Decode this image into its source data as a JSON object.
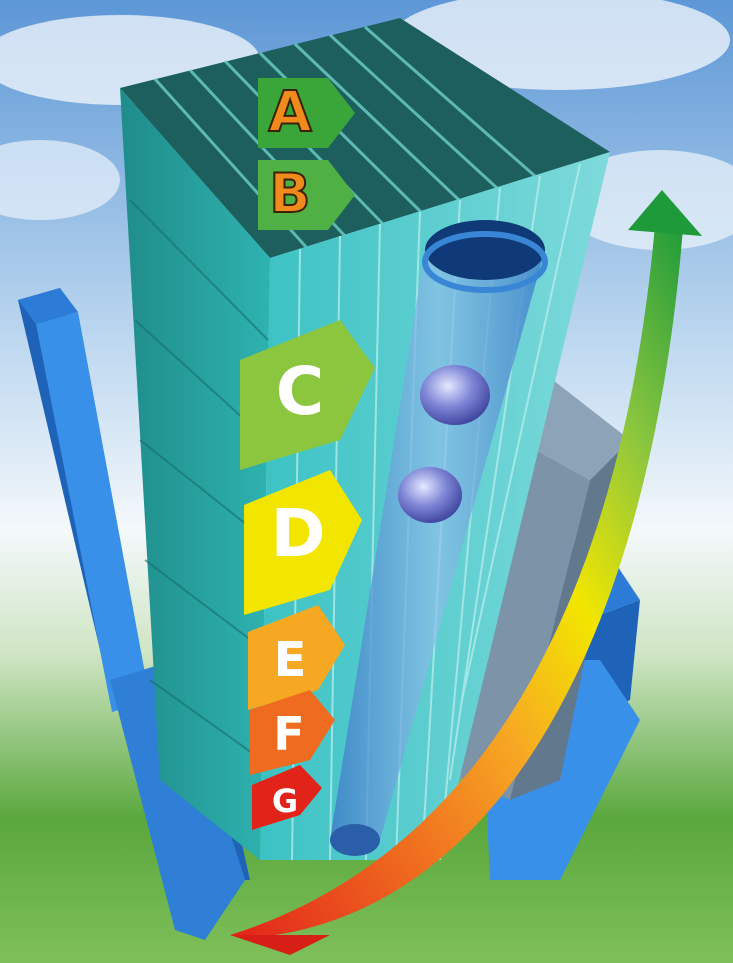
{
  "energy_labels": [
    {
      "letter": "A",
      "color": "#3aa63a",
      "text_color": "#f08a1c"
    },
    {
      "letter": "B",
      "color": "#4fb043",
      "text_color": "#f08a1c"
    },
    {
      "letter": "C",
      "color": "#8cc63f",
      "text_color": "#ffffff"
    },
    {
      "letter": "D",
      "color": "#f2e600",
      "text_color": "#ffffff"
    },
    {
      "letter": "E",
      "color": "#f7a823",
      "text_color": "#ffffff"
    },
    {
      "letter": "F",
      "color": "#ef6b1f",
      "text_color": "#ffffff"
    },
    {
      "letter": "G",
      "color": "#e2231a",
      "text_color": "#ffffff"
    }
  ],
  "arrow_gradient": [
    "#e2231a",
    "#ef6b1f",
    "#f7a823",
    "#f2e600",
    "#8cc63f",
    "#1f9a3a"
  ],
  "colors": {
    "sky": "#7fb3e6",
    "grass": "#5aa83d",
    "tower": "#2aa7a4",
    "tower_top": "#1c5f5d",
    "blue_block": "#2f7fd6",
    "grey_block": "#7c93a8"
  },
  "icons": [
    "building-illustration",
    "efficiency-arrow-icon"
  ]
}
